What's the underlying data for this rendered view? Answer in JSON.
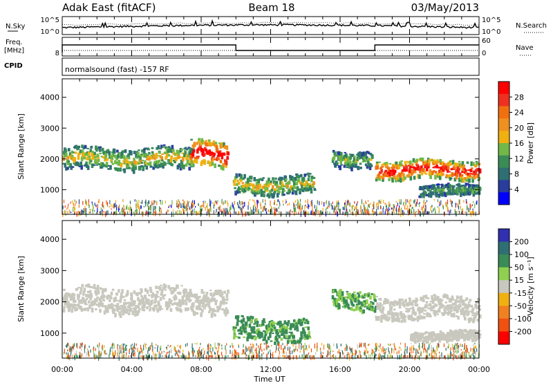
{
  "header": {
    "station": "Adak East (fitACF)",
    "beam": "Beam 18",
    "date": "03/May/2013"
  },
  "noise_panel": {
    "left_label": "N.Sky",
    "right_label": "N.Search",
    "left_ticks": [
      "10^5",
      "10^0"
    ],
    "right_ticks": [
      "10^5",
      "10^0"
    ]
  },
  "freq_panel": {
    "left_label_1": "Freq.",
    "left_label_2": "[MHz]",
    "left_tick": "8",
    "right_label": "Nave",
    "right_ticks": [
      "60",
      "0"
    ]
  },
  "cpid_panel": {
    "label": "CPID",
    "text": "normalsound (fast) -157 RF"
  },
  "colors": {
    "power_scale": [
      "#0000ff",
      "#2a3d9c",
      "#2f6f73",
      "#3a8c56",
      "#71b848",
      "#f0b010",
      "#f09020",
      "#f07010",
      "#ef3020",
      "#ff0000"
    ],
    "velocity_scale": [
      "#3030b0",
      "#2f6f73",
      "#3a8c56",
      "#8fd050",
      "#c8c8be",
      "#f0b010",
      "#f08020",
      "#f05010",
      "#ff0000"
    ]
  },
  "chart_data": [
    {
      "type": "heatmap",
      "name": "power",
      "ylabel": "Slant Range [km]",
      "xlabel": "Time UT",
      "x_ticks": [
        "00:00",
        "04:00",
        "08:00",
        "12:00",
        "16:00",
        "20:00",
        "00:00"
      ],
      "y_ticks": [
        1000,
        2000,
        3000,
        4000
      ],
      "ylim": [
        200,
        4600
      ],
      "xlim_hours": [
        0,
        24
      ],
      "colorbar": {
        "label": "Power [dB]",
        "ticks": [
          4,
          8,
          12,
          16,
          20,
          24,
          28
        ],
        "range": [
          0,
          32
        ]
      },
      "features": [
        {
          "kind": "band",
          "hours": [
            0,
            7.5
          ],
          "range_km": [
            1700,
            2400
          ],
          "power_db": 14
        },
        {
          "kind": "band",
          "hours": [
            7.3,
            9.5
          ],
          "range_km": [
            1800,
            2600
          ],
          "power_db": 26
        },
        {
          "kind": "band",
          "hours": [
            9.8,
            14.5
          ],
          "range_km": [
            900,
            1500
          ],
          "power_db": 14
        },
        {
          "kind": "band",
          "hours": [
            15.5,
            17.8
          ],
          "range_km": [
            1800,
            2300
          ],
          "power_db": 12
        },
        {
          "kind": "band",
          "hours": [
            18,
            24
          ],
          "range_km": [
            1400,
            2000
          ],
          "power_db": 24
        },
        {
          "kind": "band",
          "hours": [
            20.5,
            24
          ],
          "range_km": [
            850,
            1200
          ],
          "power_db": 10
        }
      ]
    },
    {
      "type": "heatmap",
      "name": "velocity",
      "ylabel": "Slant Range [km]",
      "xlabel": "Time UT",
      "x_ticks": [
        "00:00",
        "04:00",
        "08:00",
        "12:00",
        "16:00",
        "20:00",
        "00:00"
      ],
      "y_ticks": [
        1000,
        2000,
        3000,
        4000
      ],
      "ylim": [
        200,
        4600
      ],
      "xlim_hours": [
        0,
        24
      ],
      "colorbar": {
        "label": "Velocity [m s⁻¹]",
        "ticks": [
          "200",
          "100",
          "50",
          "15",
          "-15",
          "-50",
          "-100",
          "-200"
        ],
        "range": [
          -250,
          250
        ]
      },
      "features": [
        {
          "kind": "band",
          "hours": [
            0,
            9.5
          ],
          "range_km": [
            1700,
            2500
          ],
          "velocity": 0
        },
        {
          "kind": "band",
          "hours": [
            9.8,
            14.2
          ],
          "range_km": [
            800,
            1500
          ],
          "velocity": 60
        },
        {
          "kind": "band",
          "hours": [
            15.5,
            18
          ],
          "range_km": [
            1800,
            2400
          ],
          "velocity": 50
        },
        {
          "kind": "band",
          "hours": [
            18,
            24
          ],
          "range_km": [
            1500,
            2200
          ],
          "velocity": 0
        },
        {
          "kind": "band",
          "hours": [
            20,
            24
          ],
          "range_km": [
            800,
            1100
          ],
          "velocity": 0
        }
      ]
    }
  ]
}
